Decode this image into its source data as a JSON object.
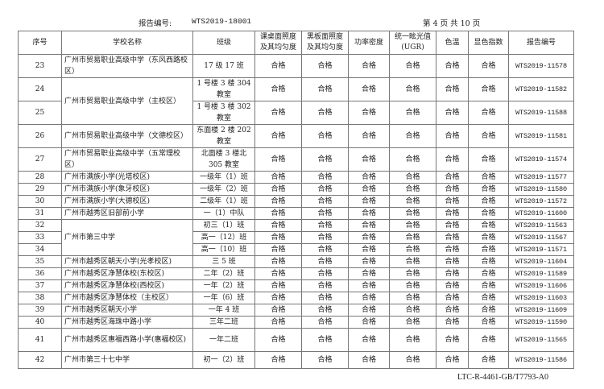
{
  "header": {
    "report_label": "报告编号:",
    "report_no": "WTS2019-18001",
    "page_info": "第 4 页  共 10 页"
  },
  "columns": [
    "序号",
    "学校名称",
    "班级",
    "课桌面照度及其均匀度",
    "黑板面照度及其均匀度",
    "功率密度",
    "统一眩光值(UGR)",
    "色温",
    "显色指数",
    "报告编号"
  ],
  "rows": [
    {
      "no": "23",
      "school": "广州市贸易职业高级中学（东风西路校区）",
      "class": "17 级 17 班",
      "results": [
        "合格",
        "合格",
        "合格",
        "合格",
        "合格",
        "合格"
      ],
      "report": "WTS2019-11578",
      "tall": true
    },
    {
      "no": "24",
      "school": "广州市贸易职业高级中学（主校区）",
      "school_rowspan": 2,
      "class": "1 号楼 3 楼 304 教室",
      "results": [
        "合格",
        "合格",
        "合格",
        "合格",
        "合格",
        "合格"
      ],
      "report": "WTS2019-11582",
      "tall": true
    },
    {
      "no": "25",
      "class": "1 号楼 3 楼 302 教室",
      "results": [
        "合格",
        "合格",
        "合格",
        "合格",
        "合格",
        "合格"
      ],
      "report": "WTS2019-11588",
      "tall": true
    },
    {
      "no": "26",
      "school": "广州市贸易职业高级中学（文德校区）",
      "class": "东面楼 2 楼 202 教室",
      "results": [
        "合格",
        "合格",
        "合格",
        "合格",
        "合格",
        "合格"
      ],
      "report": "WTS2019-11581",
      "tall": true
    },
    {
      "no": "27",
      "school": "广州市贸易职业高级中学（五常理校区）",
      "class": "北面楼 3 楼北 305 教室",
      "results": [
        "合格",
        "合格",
        "合格",
        "合格",
        "合格",
        "合格"
      ],
      "report": "WTS2019-11574",
      "tall": true
    },
    {
      "no": "28",
      "school": "广州市满族小学(光塔校区)",
      "class": "一级年（1）班",
      "results": [
        "合格",
        "合格",
        "合格",
        "合格",
        "合格",
        "合格"
      ],
      "report": "WTS2019-11577"
    },
    {
      "no": "29",
      "school": "广州市满族小学(象牙校区)",
      "class": "一级年（2）班",
      "results": [
        "合格",
        "合格",
        "合格",
        "合格",
        "合格",
        "合格"
      ],
      "report": "WTS2019-11580"
    },
    {
      "no": "30",
      "school": "广州市满族小学(大德校区)",
      "class": "二级年（1）班",
      "results": [
        "合格",
        "合格",
        "合格",
        "合格",
        "合格",
        "合格"
      ],
      "report": "WTS2019-11572"
    },
    {
      "no": "31",
      "school": "广州市越秀区旧部前小学",
      "class": "一（1）中队",
      "results": [
        "合格",
        "合格",
        "合格",
        "合格",
        "合格",
        "合格"
      ],
      "report": "WTS2019-11600"
    },
    {
      "no": "32",
      "school": "广州市第三中学",
      "school_rowspan": 3,
      "class": "初三（1）班",
      "results": [
        "合格",
        "合格",
        "合格",
        "合格",
        "合格",
        "合格"
      ],
      "report": "WTS2019-11563"
    },
    {
      "no": "33",
      "class": "高一（12）班",
      "results": [
        "合格",
        "合格",
        "合格",
        "合格",
        "合格",
        "合格"
      ],
      "report": "WTS2019-11567"
    },
    {
      "no": "34",
      "class": "高一（10）班",
      "results": [
        "合格",
        "合格",
        "合格",
        "合格",
        "合格",
        "合格"
      ],
      "report": "WTS2019-11571"
    },
    {
      "no": "35",
      "school": "广州市越秀区朝天小学(光孝校区)",
      "class": "三 5 班",
      "results": [
        "合格",
        "合格",
        "合格",
        "合格",
        "合格",
        "合格"
      ],
      "report": "WTS2019-11604"
    },
    {
      "no": "36",
      "school": "广州市越秀区净慧体校(东校区)",
      "class": "二年（2）班",
      "results": [
        "合格",
        "合格",
        "合格",
        "合格",
        "合格",
        "合格"
      ],
      "report": "WTS2019-11589"
    },
    {
      "no": "37",
      "school": "广州市越秀区净慧体校(西校区)",
      "class": "一年（2）班",
      "results": [
        "合格",
        "合格",
        "合格",
        "合格",
        "合格",
        "合格"
      ],
      "report": "WTS2019-11606"
    },
    {
      "no": "38",
      "school": "广州市越秀区净慧体校（主校区）",
      "class": "一年（6）班",
      "results": [
        "合格",
        "合格",
        "合格",
        "合格",
        "合格",
        "合格"
      ],
      "report": "WTS2019-11603"
    },
    {
      "no": "39",
      "school": "广州市越秀区朝天小学",
      "class": "一年 4 班",
      "results": [
        "合格",
        "合格",
        "合格",
        "合格",
        "合格",
        "合格"
      ],
      "report": "WTS2019-11609"
    },
    {
      "no": "40",
      "school": "广州市越秀区海珠中路小学",
      "class": "三年二班",
      "results": [
        "合格",
        "合格",
        "合格",
        "合格",
        "合格",
        "合格"
      ],
      "report": "WTS2019-11590"
    },
    {
      "no": "41",
      "school": "广州市越秀区惠福西路小学(惠福校区)",
      "class": "一年二班",
      "results": [
        "合格",
        "合格",
        "合格",
        "合格",
        "合格",
        "合格"
      ],
      "report": "WTS2019-11565",
      "tall": true
    },
    {
      "no": "42",
      "school": "广州市第三十七中学",
      "class": "初一（2）班",
      "results": [
        "合格",
        "合格",
        "合格",
        "合格",
        "合格",
        "合格"
      ],
      "report": "WTS2019-11586",
      "mid": true
    }
  ],
  "footer": "LTC-R-4461-GB/T7793-A0"
}
